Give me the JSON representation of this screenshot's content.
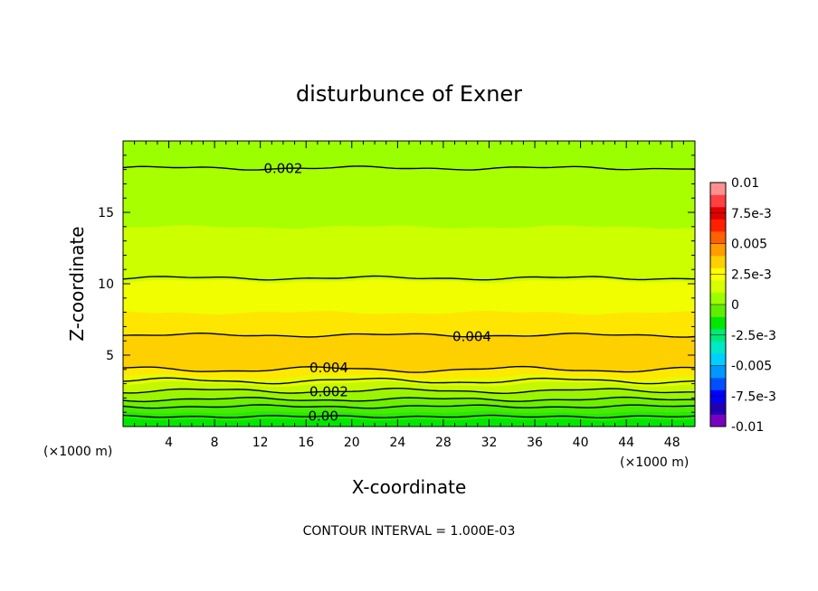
{
  "chart_data": {
    "type": "contour",
    "title": "disturbunce of Exner",
    "xlabel": "X-coordinate",
    "ylabel": "Z-coordinate",
    "xlim": [
      0,
      50
    ],
    "ylim": [
      0,
      20
    ],
    "x_unit_left": "(×1000 m)",
    "x_unit_right": "(×1000 m)",
    "x_ticks": [
      4,
      8,
      12,
      16,
      20,
      24,
      28,
      32,
      36,
      40,
      44,
      48
    ],
    "y_ticks": [
      5,
      10,
      15
    ],
    "contour_interval_text": "CONTOUR INTERVAL = 1.000E-03",
    "colorbar": {
      "range": [
        -0.01,
        0.01
      ],
      "tick_labels": [
        "0.01",
        "7.5e-3",
        "0.005",
        "2.5e-3",
        "0",
        "-2.5e-3",
        "-0.005",
        "-7.5e-3",
        "-0.01"
      ],
      "tick_values": [
        0.01,
        0.0075,
        0.005,
        0.0025,
        0,
        -0.0025,
        -0.005,
        -0.0075,
        -0.01
      ],
      "colors": [
        "#7a00c0",
        "#2000b0",
        "#0000ff",
        "#0050ff",
        "#0098ff",
        "#00d0ff",
        "#00e8c8",
        "#00e878",
        "#00e800",
        "#60ee00",
        "#9cff00",
        "#d8ff00",
        "#ffff00",
        "#ffd000",
        "#ff9c00",
        "#ff6000",
        "#ff2000",
        "#e00000",
        "#ff4040",
        "#ff9090"
      ]
    },
    "bands_z": [
      0,
      0.5,
      1.0,
      1.5,
      2.0,
      2.5,
      3.0,
      3.5,
      4.0,
      6.4,
      8.0,
      10.2,
      14.0,
      18.2,
      20
    ],
    "band_colors": [
      "#00e800",
      "#28ea00",
      "#48ec00",
      "#70ee00",
      "#9cf400",
      "#c4f800",
      "#e4fb00",
      "#ffe800",
      "#ffd000",
      "#ffe600",
      "#f0fe00",
      "#ccff00",
      "#a8ff00",
      "#9cff00"
    ],
    "contour_lines_z": [
      0.7,
      1.4,
      1.9,
      2.5,
      3.2,
      4.0,
      6.4,
      10.4,
      18.1
    ],
    "contour_labels": [
      {
        "text": "0.002",
        "x": 14.0,
        "z": 18.1
      },
      {
        "text": "0.004",
        "x": 30.5,
        "z": 6.4
      },
      {
        "text": "0.004",
        "x": 18.0,
        "z": 4.0
      },
      {
        "text": "0.002",
        "x": 18.0,
        "z": 2.5
      },
      {
        "text": "0.00",
        "x": 17.5,
        "z": 0.7
      }
    ]
  }
}
